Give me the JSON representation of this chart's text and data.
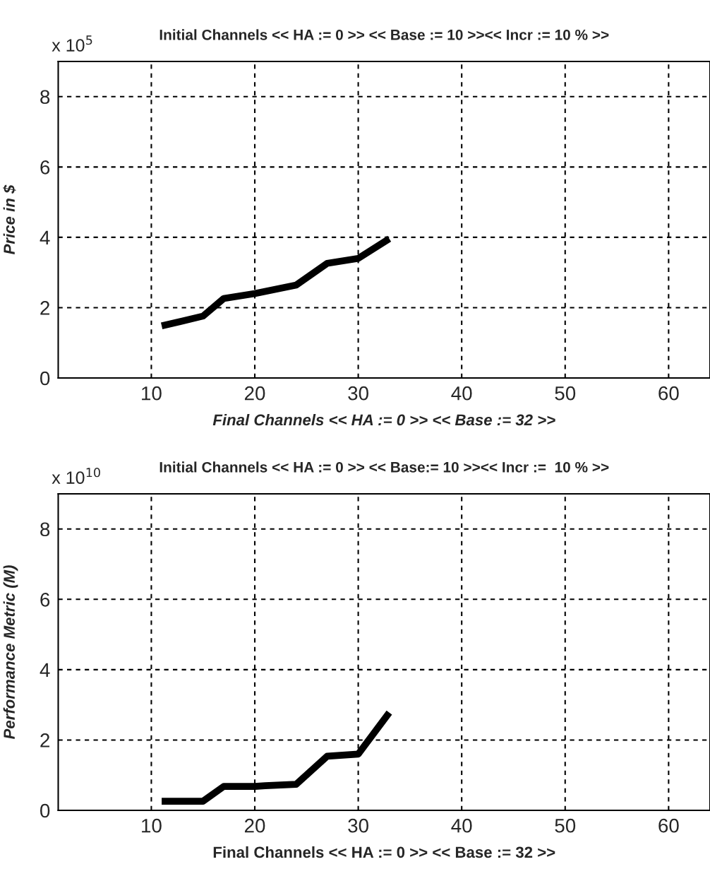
{
  "chart_data": [
    {
      "type": "line",
      "title": "Initial Channels << HA := 0 >> << Base := 10 >><< Incr := 10 % >>",
      "ylabel": "Price in $",
      "xlabel": "Final Channels << HA := 0 >> << Base := 32 >>",
      "annotations": [
        "x 10$^{5}$"
      ],
      "x": [
        11,
        15,
        17,
        20,
        24,
        27,
        30,
        33
      ],
      "series": [
        {
          "color": "#000000",
          "values": [
            1.48,
            1.76,
            2.26,
            2.4,
            2.64,
            3.26,
            3.4,
            3.96
          ]
        }
      ],
      "xlim": [
        1,
        64
      ],
      "xticks": [
        10,
        20,
        30,
        40,
        50,
        60
      ],
      "ylim": [
        0,
        9
      ],
      "yticks": [
        0,
        2,
        4,
        6,
        8
      ],
      "grid": true,
      "line_style": "solid",
      "marker": "none"
    },
    {
      "type": "line",
      "title": "Initial Channels << HA := 0 >> << Base:= 10 >><< Incr :=  10 % >>",
      "ylabel": "Performance Metric (M)",
      "xlabel": "Final Channels << HA := 0 >> << Base := 32 >>",
      "annotations": [
        "x 10$^{10}$"
      ],
      "x": [
        11,
        15,
        17,
        20,
        21,
        24,
        27,
        30,
        33
      ],
      "series": [
        {
          "color": "#000000",
          "values": [
            0.26,
            0.26,
            0.68,
            0.68,
            0.7,
            0.74,
            1.54,
            1.6,
            2.78
          ]
        }
      ],
      "xlim": [
        1,
        64
      ],
      "xticks": [
        10,
        20,
        30,
        40,
        50,
        60
      ],
      "ylim": [
        0,
        9
      ],
      "yticks": [
        0,
        2,
        4,
        6,
        8
      ],
      "grid": true,
      "line_style": "solid",
      "marker": "none"
    }
  ]
}
